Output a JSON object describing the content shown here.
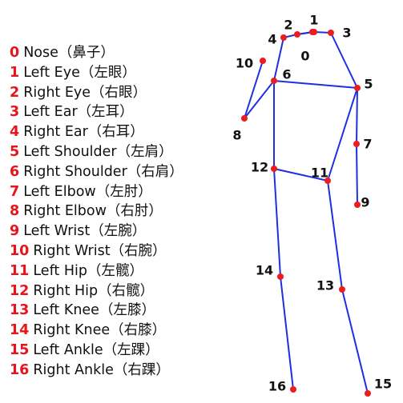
{
  "colors": {
    "index": "#e8141c",
    "limb": "#1f2fe0",
    "joint": "#ee1c1c"
  },
  "keypoints": [
    {
      "id": "0",
      "label": "Nose（鼻子）"
    },
    {
      "id": "1",
      "label": "Left Eye（左眼）"
    },
    {
      "id": "2",
      "label": "Right Eye（右眼）"
    },
    {
      "id": "3",
      "label": "Left Ear（左耳）"
    },
    {
      "id": "4",
      "label": "Right Ear（右耳）"
    },
    {
      "id": "5",
      "label": "Left Shoulder（左肩）"
    },
    {
      "id": "6",
      "label": "Right Shoulder（右肩）"
    },
    {
      "id": "7",
      "label": "Left Elbow（左肘）"
    },
    {
      "id": "8",
      "label": "Right Elbow（右肘）"
    },
    {
      "id": "9",
      "label": "Left Wrist（左腕）"
    },
    {
      "id": "10",
      "label": "Right Wrist（右腕）"
    },
    {
      "id": "11",
      "label": "Left Hip（左髋）"
    },
    {
      "id": "12",
      "label": "Right Hip（右髋）"
    },
    {
      "id": "13",
      "label": "Left Knee（左膝）"
    },
    {
      "id": "14",
      "label": "Right Knee（右膝）"
    },
    {
      "id": "15",
      "label": "Left Ankle（左踝）"
    },
    {
      "id": "16",
      "label": "Right Ankle（右踝）"
    }
  ],
  "skeleton": [
    [
      0,
      1
    ],
    [
      0,
      2
    ],
    [
      1,
      2
    ],
    [
      1,
      3
    ],
    [
      2,
      4
    ],
    [
      3,
      5
    ],
    [
      4,
      6
    ],
    [
      5,
      6
    ],
    [
      5,
      7
    ],
    [
      7,
      9
    ],
    [
      6,
      8
    ],
    [
      8,
      10
    ],
    [
      5,
      11
    ],
    [
      6,
      12
    ],
    [
      11,
      12
    ],
    [
      11,
      13
    ],
    [
      12,
      14
    ],
    [
      13,
      15
    ],
    [
      14,
      16
    ]
  ]
}
